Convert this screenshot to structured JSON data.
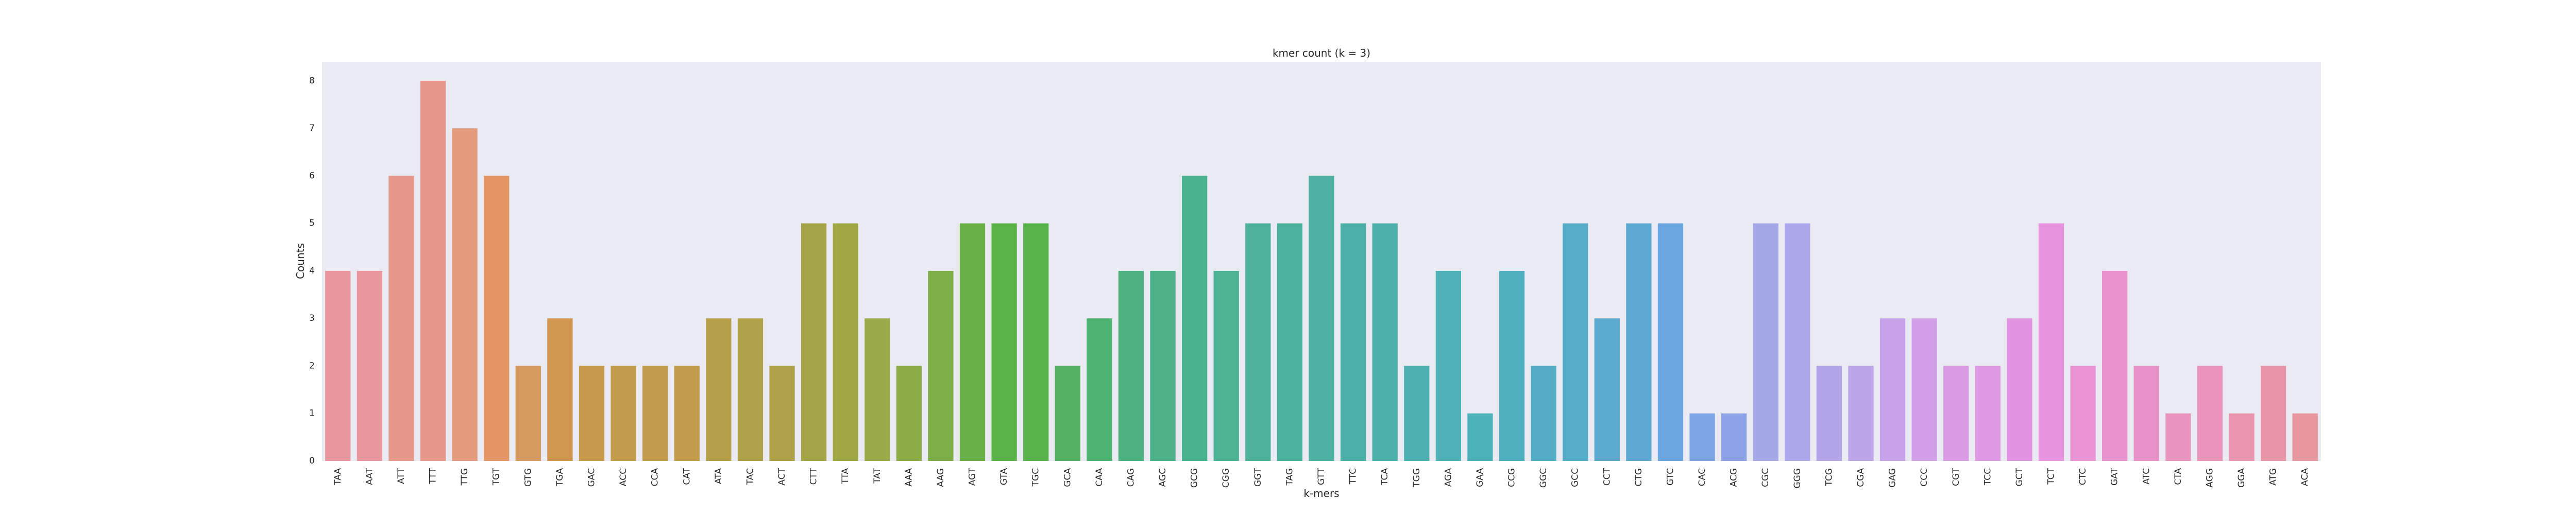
{
  "chart_data": {
    "type": "bar",
    "title": "kmer count (k = 3)",
    "xlabel": "k-mers",
    "ylabel": "Counts",
    "ylim": [
      0,
      8.4
    ],
    "yticks": [
      0,
      1,
      2,
      3,
      4,
      5,
      6,
      7,
      8
    ],
    "grid": false,
    "background": "#eaeaf2",
    "categories": [
      "TAA",
      "AAT",
      "ATT",
      "TTT",
      "TTG",
      "TGT",
      "GTG",
      "TGA",
      "GAC",
      "ACC",
      "CCA",
      "CAT",
      "ATA",
      "TAC",
      "ACT",
      "CTT",
      "TTA",
      "TAT",
      "AAA",
      "AAG",
      "AGT",
      "GTA",
      "TGC",
      "GCA",
      "CAA",
      "CAG",
      "AGC",
      "GCG",
      "CGG",
      "GGT",
      "TAG",
      "GTT",
      "TTC",
      "TCA",
      "TGG",
      "AGA",
      "GAA",
      "CCG",
      "GGC",
      "GCC",
      "CCT",
      "CTG",
      "GTC",
      "CAC",
      "ACG",
      "CGC",
      "GGG",
      "TCG",
      "CGA",
      "GAG",
      "CCC",
      "CGT",
      "TCC",
      "GCT",
      "TCT",
      "CTC",
      "GAT",
      "ATC",
      "CTA",
      "AGG",
      "GGA",
      "ATG",
      "ACA"
    ],
    "values": [
      4,
      4,
      6,
      8,
      7,
      6,
      2,
      3,
      2,
      2,
      2,
      2,
      3,
      3,
      2,
      5,
      5,
      3,
      2,
      4,
      5,
      5,
      5,
      2,
      3,
      4,
      4,
      6,
      4,
      5,
      5,
      6,
      5,
      5,
      2,
      4,
      1,
      4,
      2,
      5,
      3,
      5,
      5,
      1,
      1,
      5,
      5,
      2,
      2,
      3,
      3,
      2,
      2,
      3,
      5,
      2,
      4,
      2,
      1,
      2,
      1,
      2,
      1
    ],
    "colors": [
      "#e8969c",
      "#e8969c",
      "#e8978b",
      "#e8978b",
      "#e49a7c",
      "#e39563",
      "#d79a5e",
      "#d0964f",
      "#c7994a",
      "#c19c4a",
      "#c19c4a",
      "#c19c4a",
      "#b59f49",
      "#aea148",
      "#aea148",
      "#a3a548",
      "#a0a846",
      "#9aa949",
      "#8cac48",
      "#7eae47",
      "#69b146",
      "#5ab346",
      "#58b34b",
      "#52b261",
      "#4fb374",
      "#4db280",
      "#4db288",
      "#49b38f",
      "#4db294",
      "#4eb19a",
      "#4bb19d",
      "#4fb1a3",
      "#4bb0a8",
      "#4db0ab",
      "#4fb0b1",
      "#4fb0b6",
      "#4db1ba",
      "#4fb0bf",
      "#53aec5",
      "#56adc9",
      "#5baace",
      "#5ea8d4",
      "#6aa6df",
      "#7da4e2",
      "#8da3e6",
      "#a4a8e7",
      "#aca7ea",
      "#b3a4e8",
      "#bba4e8",
      "#c7a0ea",
      "#d19ee8",
      "#da9be4",
      "#de98e1",
      "#e293e0",
      "#e692df",
      "#e793d4",
      "#e892ce",
      "#e891c8",
      "#e993bf",
      "#e993b8",
      "#e995ad",
      "#e896a7",
      "#e8979e"
    ]
  }
}
